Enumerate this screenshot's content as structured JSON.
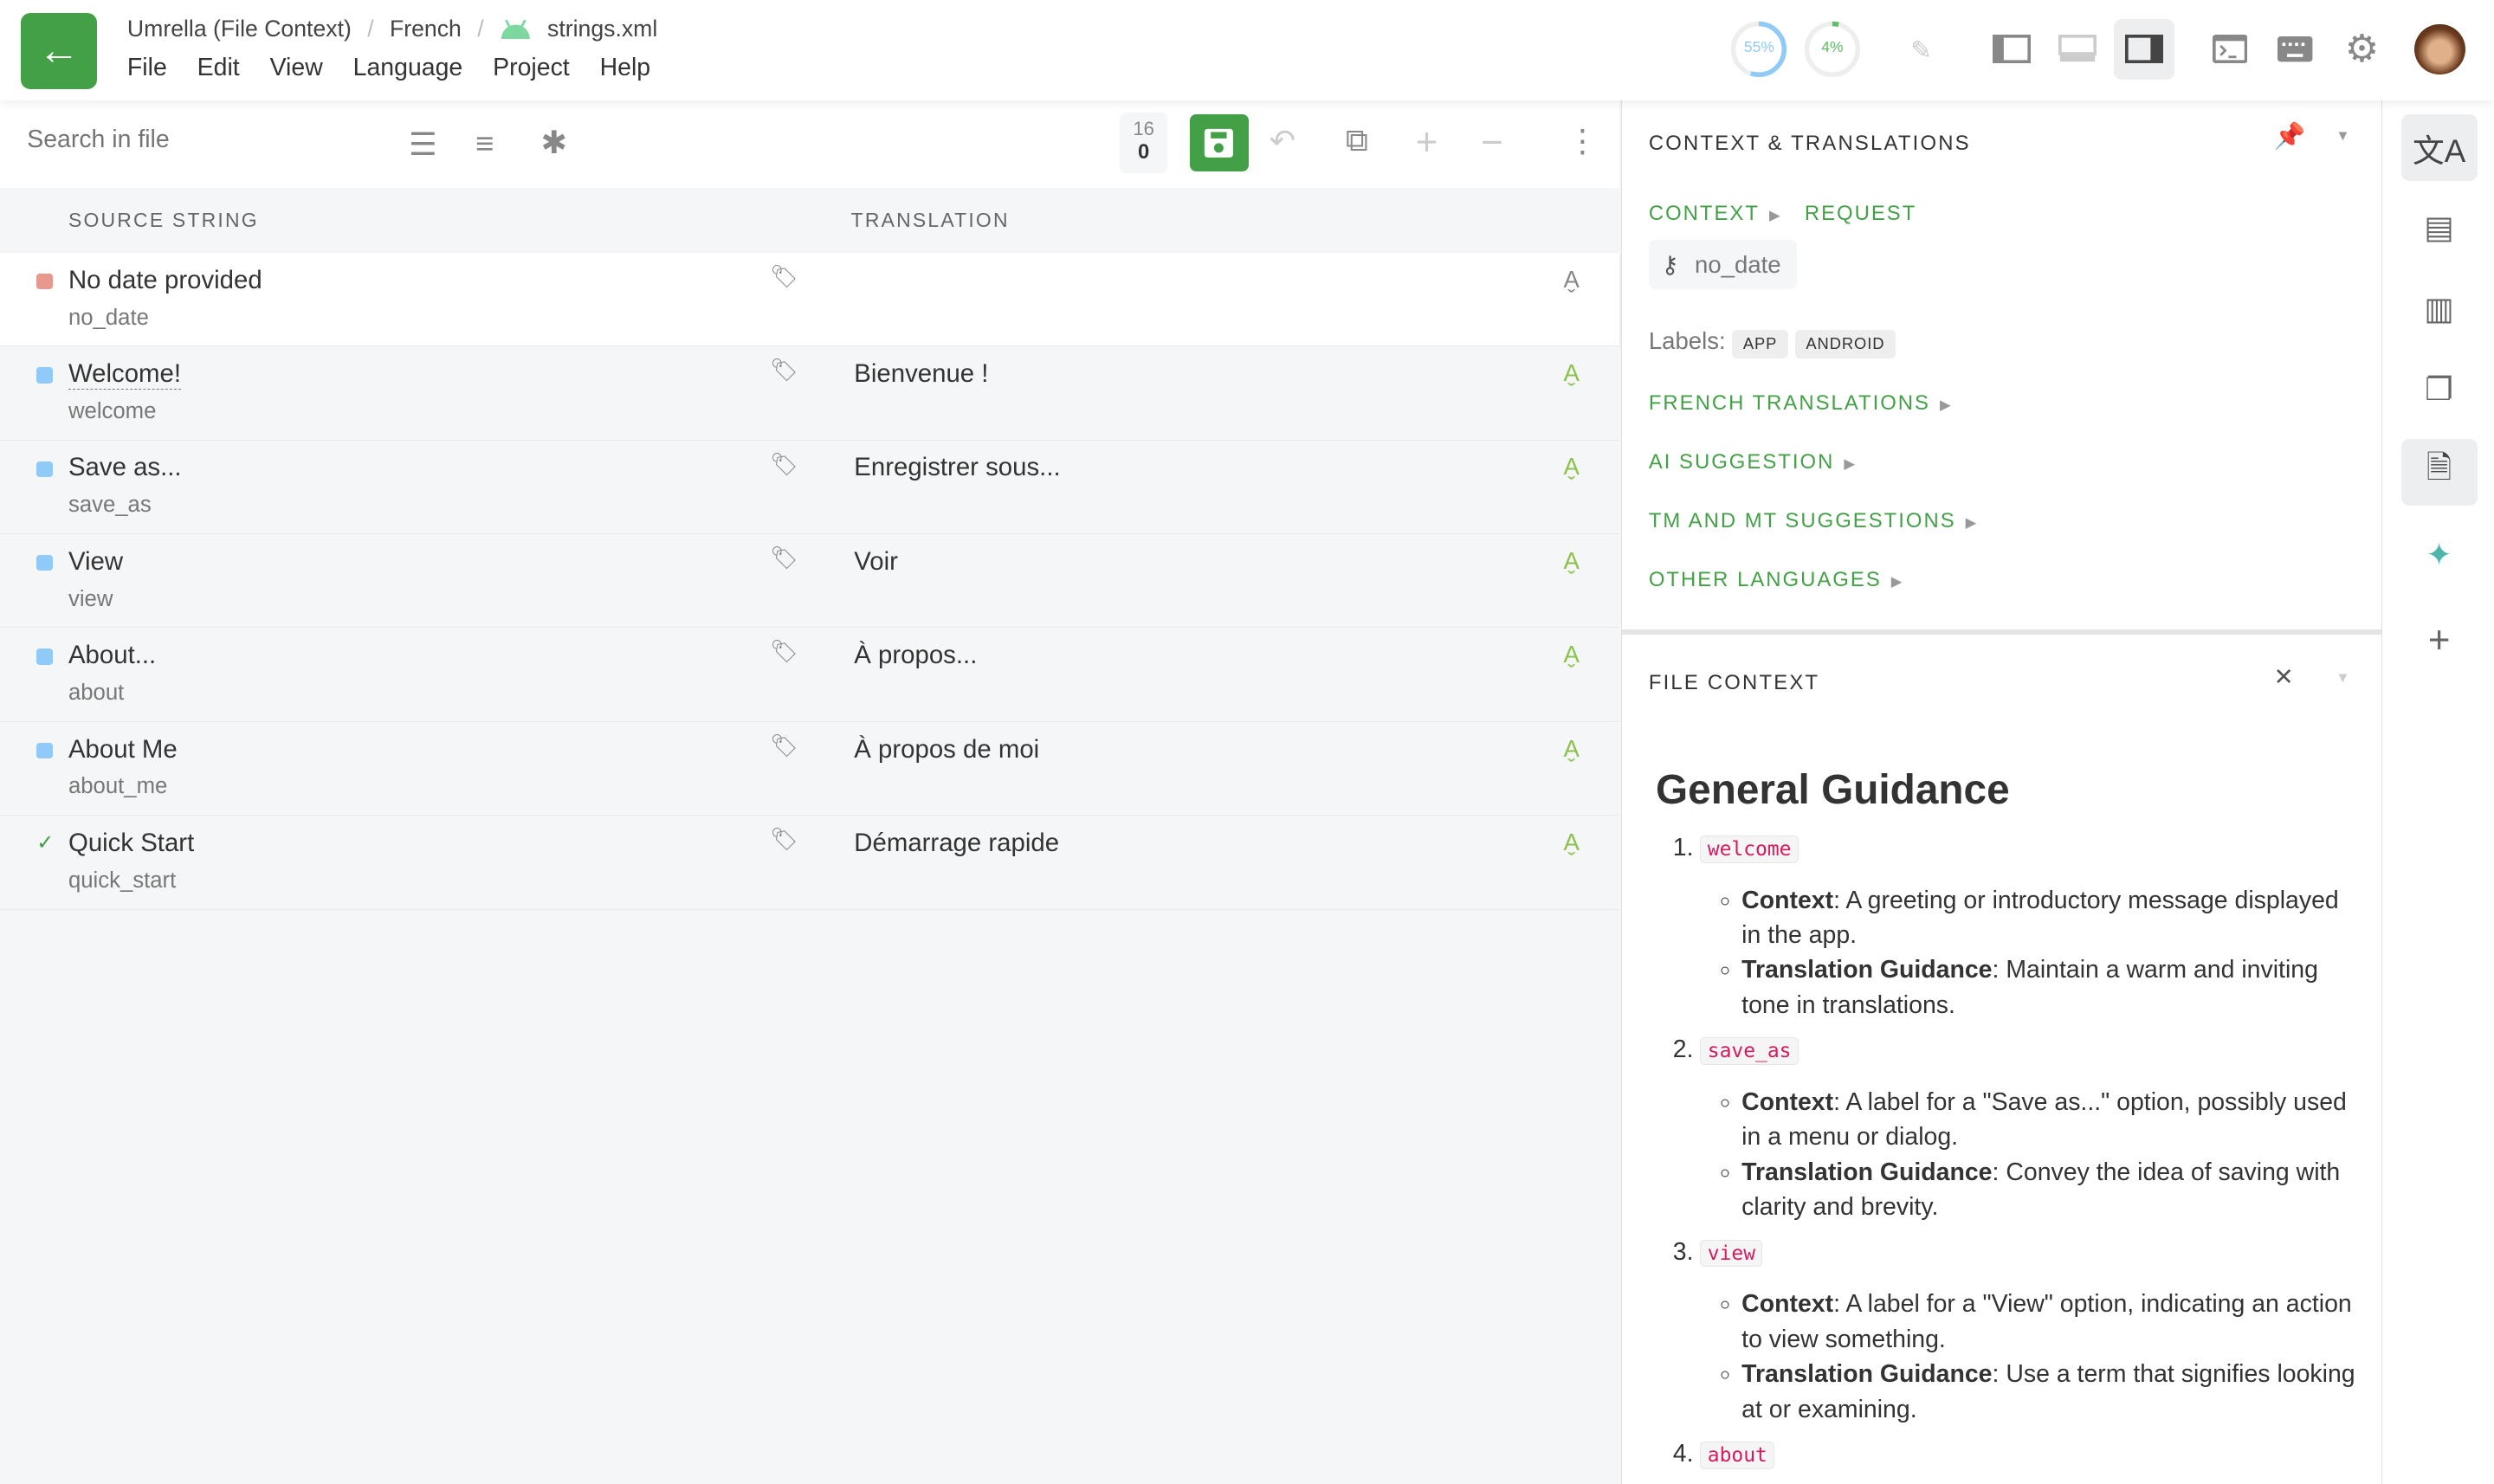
{
  "header": {
    "breadcrumb": [
      "Umrella (File Context)",
      "French",
      "strings.xml"
    ],
    "menu": [
      "File",
      "Edit",
      "View",
      "Language",
      "Project",
      "Help"
    ],
    "progress": [
      {
        "label": "55%",
        "value": 55,
        "color": "#90caf9"
      },
      {
        "label": "4%",
        "value": 4,
        "color": "#66bb6a"
      }
    ]
  },
  "toolbar": {
    "search_placeholder": "Search in file",
    "count_top": "16",
    "count_bottom": "0"
  },
  "table": {
    "col_source": "SOURCE STRING",
    "col_translation": "TRANSLATION",
    "rows": [
      {
        "source": "No date provided",
        "key": "no_date",
        "translation": "",
        "status": "error",
        "status_color": "#e8998d"
      },
      {
        "source": "Welcome!",
        "key": "welcome",
        "translation": "Bienvenue !",
        "status": "untranslated",
        "status_color": "#90caf9"
      },
      {
        "source": "Save as...",
        "key": "save_as",
        "translation": "Enregistrer sous...",
        "status": "untranslated",
        "status_color": "#90caf9"
      },
      {
        "source": "View",
        "key": "view",
        "translation": "Voir",
        "status": "untranslated",
        "status_color": "#90caf9"
      },
      {
        "source": "About...",
        "key": "about",
        "translation": "À propos...",
        "status": "untranslated",
        "status_color": "#90caf9"
      },
      {
        "source": "About Me",
        "key": "about_me",
        "translation": "À propos de moi",
        "status": "untranslated",
        "status_color": "#90caf9"
      },
      {
        "source": "Quick Start",
        "key": "quick_start",
        "translation": "Démarrage rapide",
        "status": "approved",
        "status_color": "#43a047"
      }
    ]
  },
  "context": {
    "title": "CONTEXT & TRANSLATIONS",
    "tab_context": "CONTEXT",
    "tab_request": "REQUEST",
    "key": "no_date",
    "labels_label": "Labels:",
    "labels": [
      "APP",
      "ANDROID"
    ],
    "sections": [
      "FRENCH TRANSLATIONS",
      "AI SUGGESTION",
      "TM AND MT SUGGESTIONS",
      "OTHER LANGUAGES"
    ]
  },
  "file_context": {
    "title": "FILE CONTEXT",
    "heading": "General Guidance",
    "items": [
      {
        "key": "welcome",
        "context": "A greeting or introductory message displayed in the app.",
        "guidance": "Maintain a warm and inviting tone in translations."
      },
      {
        "key": "save_as",
        "context": "A label for a \"Save as...\" option, possibly used in a menu or dialog.",
        "guidance": "Convey the idea of saving with clarity and brevity."
      },
      {
        "key": "view",
        "context": "A label for a \"View\" option, indicating an action to view something.",
        "guidance": "Use a term that signifies looking at or examining."
      },
      {
        "key": "about"
      }
    ],
    "context_label": "Context",
    "guidance_label": "Translation Guidance"
  },
  "accent": "#43a047"
}
